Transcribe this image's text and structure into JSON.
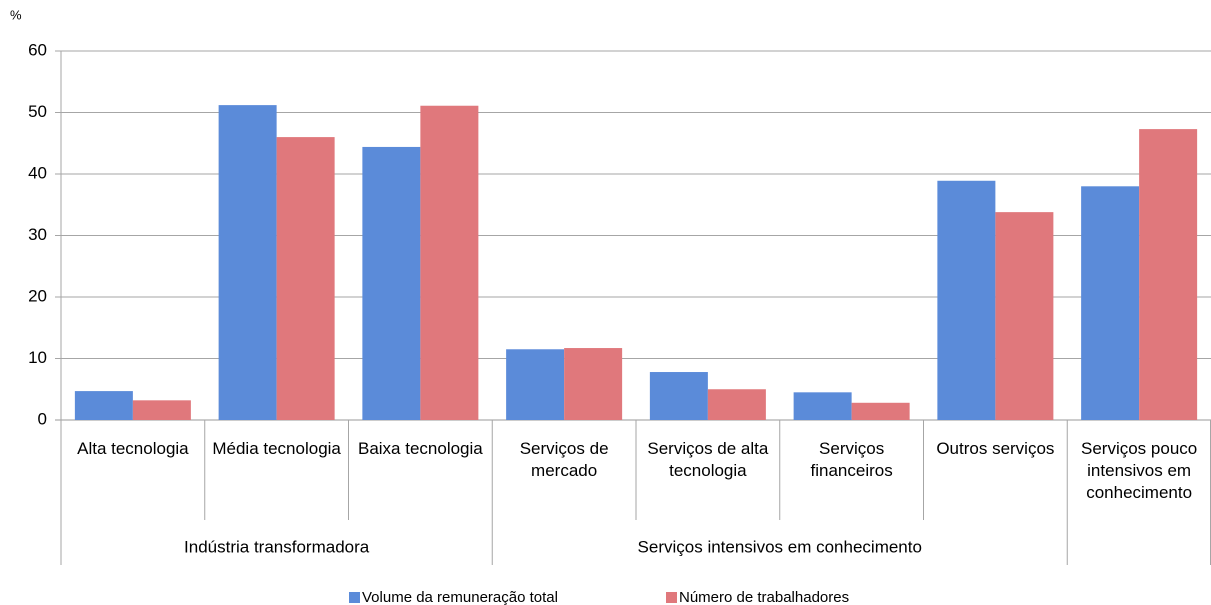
{
  "chart_data": {
    "type": "bar",
    "y_axis_label": "%",
    "categories": [
      "Alta tecnologia",
      "Média tecnologia",
      "Baixa tecnologia",
      "Serviços de mercado",
      "Serviços de alta tecnologia",
      "Serviços financeiros",
      "Outros serviços",
      "Serviços pouco intensivos em conhecimento"
    ],
    "groups": [
      {
        "name": "Indústria transformadora",
        "categories": 3
      },
      {
        "name": "Serviços intensivos em conhecimento",
        "categories": 4
      },
      {
        "name": null,
        "categories": 1
      }
    ],
    "series": [
      {
        "name": "Volume da remuneração total",
        "color": "#5b8bd9",
        "values": [
          4.7,
          51.2,
          44.4,
          11.5,
          7.8,
          4.5,
          38.9,
          38.0
        ]
      },
      {
        "name": "Número de trabalhadores",
        "color": "#e0787c",
        "values": [
          3.2,
          46.0,
          51.1,
          11.7,
          5.0,
          2.8,
          33.8,
          47.3
        ]
      }
    ],
    "ylim": [
      0,
      60
    ],
    "yticks": [
      0,
      10,
      20,
      30,
      40,
      50,
      60
    ],
    "grid": true,
    "legend": "bottom"
  }
}
